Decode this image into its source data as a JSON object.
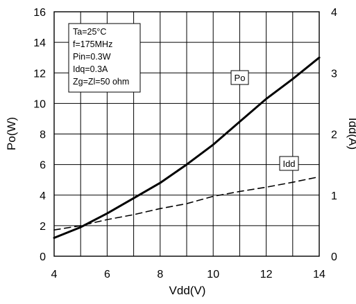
{
  "chart_data": {
    "type": "line",
    "xlabel": "Vdd(V)",
    "ylabel": "Po(W)",
    "ylabel_right": "Idd(A)",
    "xlim": [
      4,
      14
    ],
    "ylim": [
      0,
      16
    ],
    "ylim_right": [
      0,
      4
    ],
    "x_ticks": [
      4,
      6,
      8,
      10,
      12,
      14
    ],
    "y_ticks": [
      0,
      2,
      4,
      6,
      8,
      10,
      12,
      14,
      16
    ],
    "y_ticks_right": [
      0,
      1,
      2,
      3,
      4
    ],
    "grid": true,
    "conditions": [
      "Ta=25°C",
      "f=175MHz",
      "Pin=0.3W",
      "Idq=0.3A",
      "Zg=Zl=50 ohm"
    ],
    "series": [
      {
        "name": "Po",
        "axis": "left",
        "style": "solid",
        "color": "#000000",
        "x": [
          4,
          5,
          6,
          7,
          8,
          9,
          10,
          11,
          12,
          13,
          14
        ],
        "y": [
          1.2,
          1.9,
          2.8,
          3.8,
          4.8,
          6.0,
          7.3,
          8.8,
          10.3,
          11.6,
          13.0
        ]
      },
      {
        "name": "Idd",
        "axis": "right",
        "style": "dashed",
        "color": "#000000",
        "x": [
          4,
          5,
          6,
          7,
          8,
          9,
          10,
          11,
          12,
          13,
          14
        ],
        "y": [
          0.43,
          0.5,
          0.6,
          0.68,
          0.78,
          0.86,
          0.98,
          1.06,
          1.13,
          1.21,
          1.3
        ]
      }
    ]
  }
}
